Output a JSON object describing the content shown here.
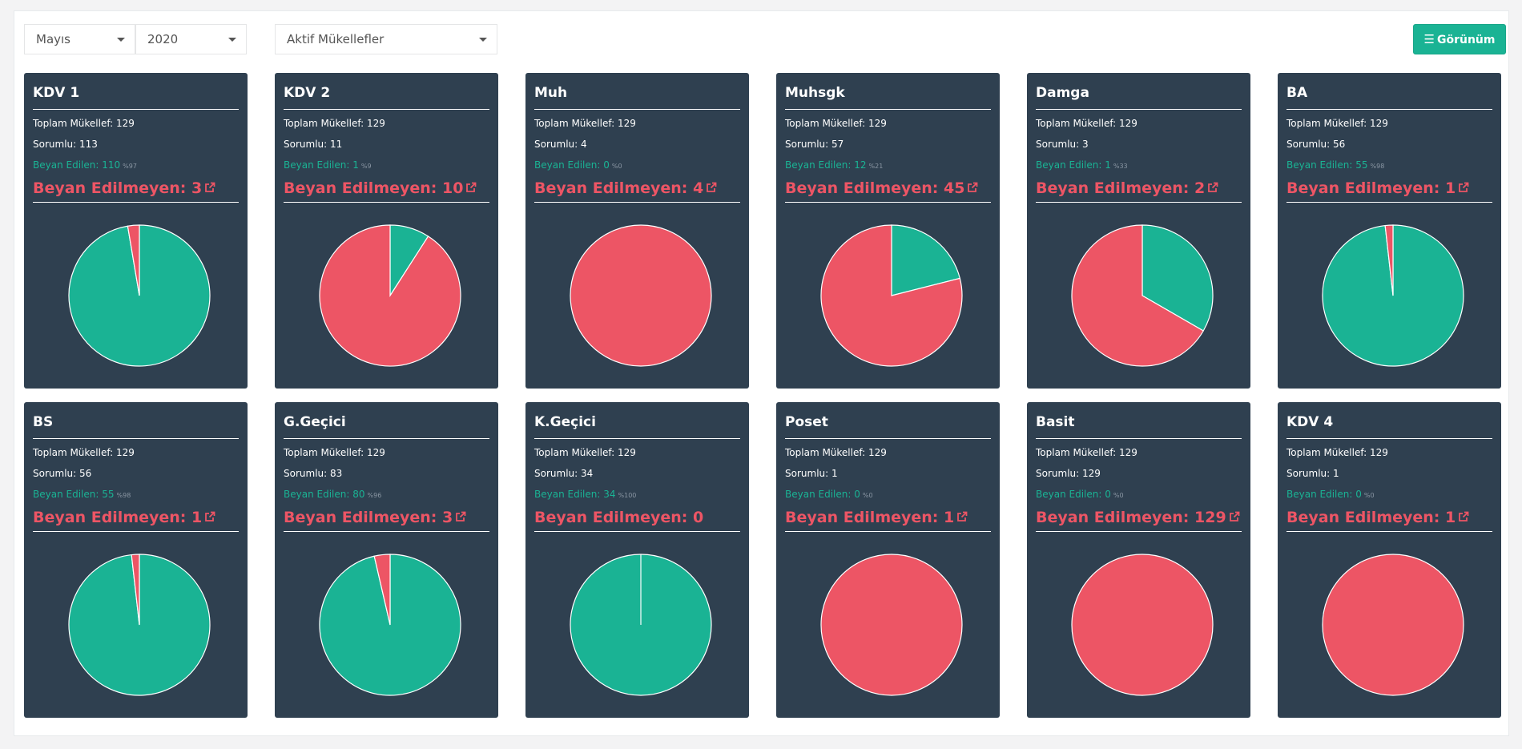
{
  "filters": {
    "month": "Mayıs",
    "year": "2020",
    "taxpayer_group": "Aktif Mükellefler"
  },
  "view_button": {
    "label": "Görünüm",
    "icon": "bars-icon"
  },
  "labels": {
    "total": "Toplam Mükellef:",
    "responsible": "Sorumlu:",
    "declared": "Beyan Edilen:",
    "undeclared": "Beyan Edilmeyen:"
  },
  "colors": {
    "declared": "#1ab394",
    "undeclared": "#ed5565",
    "card_bg": "#2f4050"
  },
  "cards": [
    {
      "title": "KDV 1",
      "total": "129",
      "responsible": "113",
      "declared": "110",
      "declared_pct": "%97",
      "undeclared": "3",
      "link": true
    },
    {
      "title": "KDV 2",
      "total": "129",
      "responsible": "11",
      "declared": "1",
      "declared_pct": "%9",
      "undeclared": "10",
      "link": true
    },
    {
      "title": "Muh",
      "total": "129",
      "responsible": "4",
      "declared": "0",
      "declared_pct": "%0",
      "undeclared": "4",
      "link": true
    },
    {
      "title": "Muhsgk",
      "total": "129",
      "responsible": "57",
      "declared": "12",
      "declared_pct": "%21",
      "undeclared": "45",
      "link": true
    },
    {
      "title": "Damga",
      "total": "129",
      "responsible": "3",
      "declared": "1",
      "declared_pct": "%33",
      "undeclared": "2",
      "link": true
    },
    {
      "title": "BA",
      "total": "129",
      "responsible": "56",
      "declared": "55",
      "declared_pct": "%98",
      "undeclared": "1",
      "link": true
    },
    {
      "title": "BS",
      "total": "129",
      "responsible": "56",
      "declared": "55",
      "declared_pct": "%98",
      "undeclared": "1",
      "link": true
    },
    {
      "title": "G.Geçici",
      "total": "129",
      "responsible": "83",
      "declared": "80",
      "declared_pct": "%96",
      "undeclared": "3",
      "link": true
    },
    {
      "title": "K.Geçici",
      "total": "129",
      "responsible": "34",
      "declared": "34",
      "declared_pct": "%100",
      "undeclared": "0",
      "link": false
    },
    {
      "title": "Poset",
      "total": "129",
      "responsible": "1",
      "declared": "0",
      "declared_pct": "%0",
      "undeclared": "1",
      "link": true
    },
    {
      "title": "Basit",
      "total": "129",
      "responsible": "129",
      "declared": "0",
      "declared_pct": "%0",
      "undeclared": "129",
      "link": true
    },
    {
      "title": "KDV 4",
      "total": "129",
      "responsible": "1",
      "declared": "0",
      "declared_pct": "%0",
      "undeclared": "1",
      "link": true
    }
  ],
  "chart_data": [
    {
      "type": "pie",
      "categories": [
        "Beyan Edilen",
        "Beyan Edilmeyen"
      ],
      "values": [
        110,
        3
      ]
    },
    {
      "type": "pie",
      "categories": [
        "Beyan Edilen",
        "Beyan Edilmeyen"
      ],
      "values": [
        1,
        10
      ]
    },
    {
      "type": "pie",
      "categories": [
        "Beyan Edilen",
        "Beyan Edilmeyen"
      ],
      "values": [
        0,
        4
      ]
    },
    {
      "type": "pie",
      "categories": [
        "Beyan Edilen",
        "Beyan Edilmeyen"
      ],
      "values": [
        12,
        45
      ]
    },
    {
      "type": "pie",
      "categories": [
        "Beyan Edilen",
        "Beyan Edilmeyen"
      ],
      "values": [
        1,
        2
      ]
    },
    {
      "type": "pie",
      "categories": [
        "Beyan Edilen",
        "Beyan Edilmeyen"
      ],
      "values": [
        55,
        1
      ]
    },
    {
      "type": "pie",
      "categories": [
        "Beyan Edilen",
        "Beyan Edilmeyen"
      ],
      "values": [
        55,
        1
      ]
    },
    {
      "type": "pie",
      "categories": [
        "Beyan Edilen",
        "Beyan Edilmeyen"
      ],
      "values": [
        80,
        3
      ]
    },
    {
      "type": "pie",
      "categories": [
        "Beyan Edilen",
        "Beyan Edilmeyen"
      ],
      "values": [
        34,
        0
      ]
    },
    {
      "type": "pie",
      "categories": [
        "Beyan Edilen",
        "Beyan Edilmeyen"
      ],
      "values": [
        0,
        1
      ]
    },
    {
      "type": "pie",
      "categories": [
        "Beyan Edilen",
        "Beyan Edilmeyen"
      ],
      "values": [
        0,
        129
      ]
    },
    {
      "type": "pie",
      "categories": [
        "Beyan Edilen",
        "Beyan Edilmeyen"
      ],
      "values": [
        0,
        1
      ]
    }
  ]
}
